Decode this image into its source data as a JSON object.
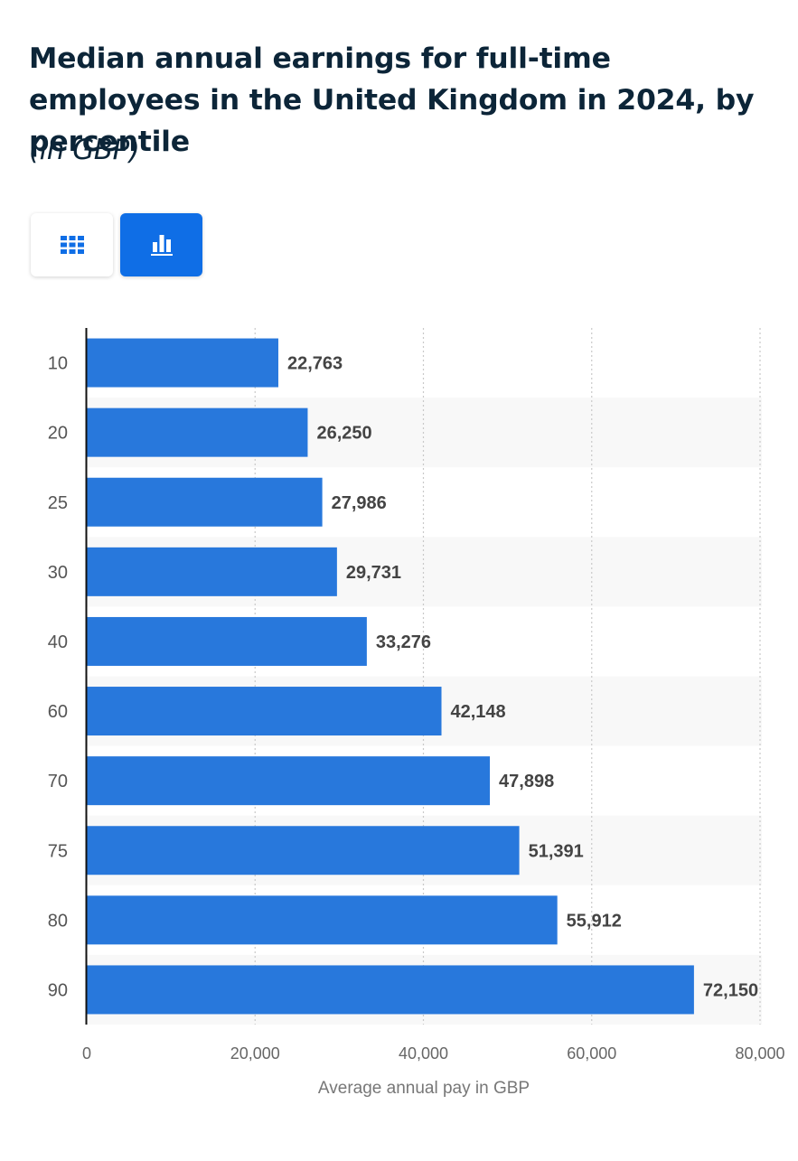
{
  "header": {
    "title": "Median annual earnings for full-time employees in the United Kingdom in 2024, by percentile",
    "subtitle": "(in GBP)"
  },
  "toggle": {
    "table_icon": "table-grid-icon",
    "chart_icon": "bar-chart-icon",
    "active": "chart"
  },
  "colors": {
    "bar": "#2878dc",
    "title": "#0c2538",
    "active_button": "#0f6ee6"
  },
  "chart_data": {
    "type": "bar",
    "orientation": "horizontal",
    "categories": [
      "10",
      "20",
      "25",
      "30",
      "40",
      "60",
      "70",
      "75",
      "80",
      "90"
    ],
    "values": [
      22763,
      26250,
      27986,
      29731,
      33276,
      42148,
      47898,
      51391,
      55912,
      72150
    ],
    "value_labels": [
      "22,763",
      "26,250",
      "27,986",
      "29,731",
      "33,276",
      "42,148",
      "47,898",
      "51,391",
      "55,912",
      "72,150"
    ],
    "xlabel": "Average annual pay in GBP",
    "ylabel": "",
    "xlim": [
      0,
      80000
    ],
    "xticks": [
      0,
      20000,
      40000,
      60000,
      80000
    ],
    "xtick_labels": [
      "0",
      "20,000",
      "40,000",
      "60,000",
      "80,000"
    ],
    "grid": "vertical dotted"
  }
}
